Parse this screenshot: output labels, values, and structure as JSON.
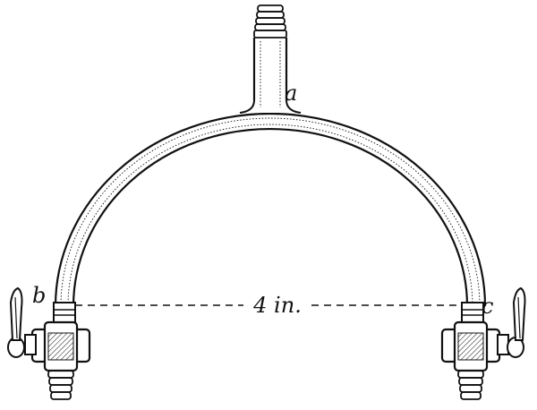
{
  "figure": {
    "labels": {
      "top_junction": "a",
      "left_end": "b",
      "right_end": "c"
    },
    "dimension": {
      "text": "4 in."
    }
  }
}
